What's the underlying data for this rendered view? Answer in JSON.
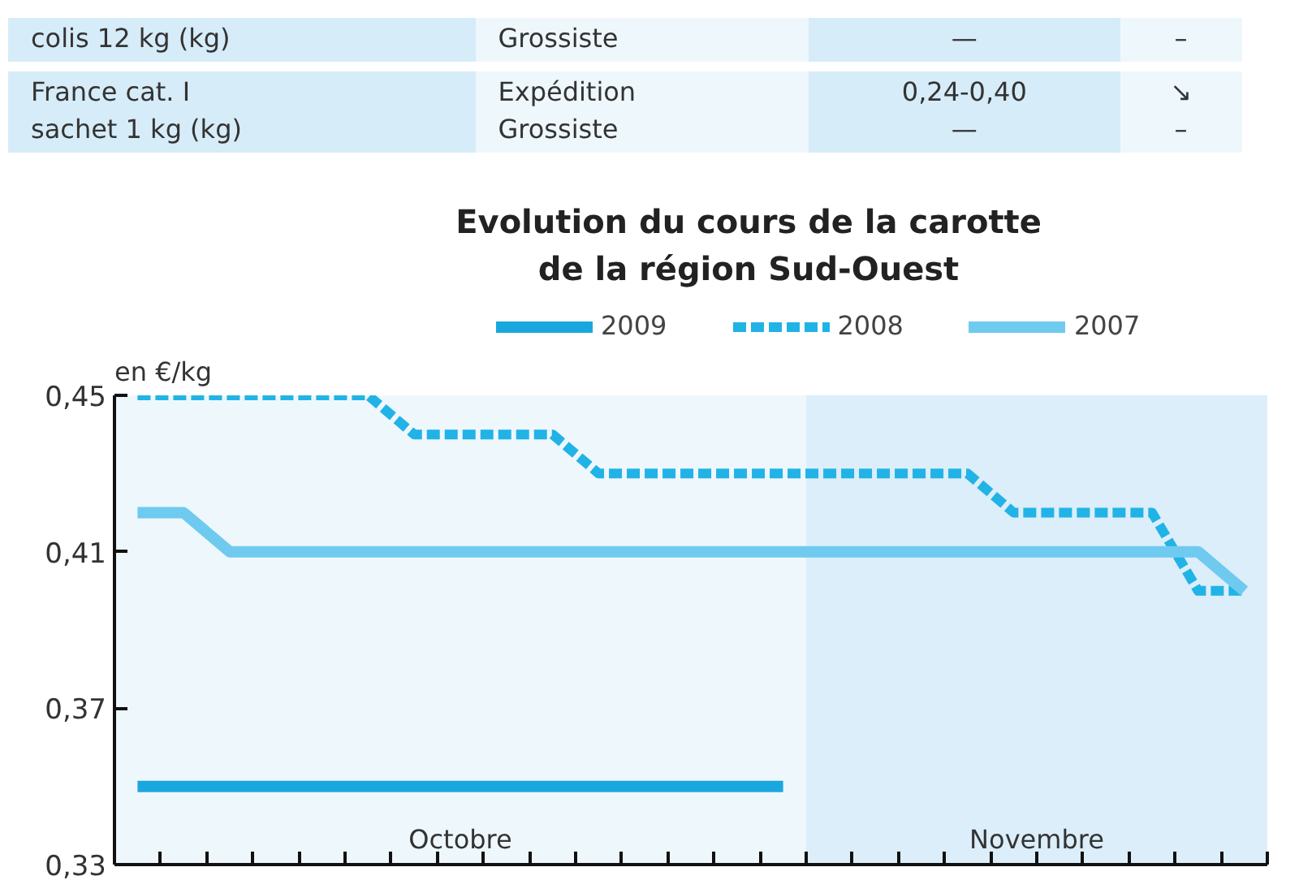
{
  "chart_data": {
    "type": "line",
    "title": "Evolution du cours de la carotte\nde la région Sud-Ouest",
    "ylabel": "en €/kg",
    "annotations": [
      "colis 12 kg (kg)",
      "Grossiste",
      "—",
      "–",
      "France cat. I\nsachet 1 kg (kg)",
      "Expédition\nGrossiste",
      "0,24-0,40\n—",
      "↘\n–",
      "Octobre",
      "Novembre"
    ],
    "categories": [
      null,
      null,
      null,
      null,
      null,
      null,
      null,
      null,
      null,
      null,
      null,
      null,
      null,
      null,
      null,
      null,
      null,
      null,
      null,
      null,
      null,
      null,
      null,
      null,
      null
    ],
    "series": [
      {
        "name": "2009",
        "color": "#1aa7de",
        "line_style": "solid",
        "values": [
          0.35,
          0.35,
          0.35,
          0.35,
          0.35,
          0.35,
          0.35,
          0.35,
          0.35,
          0.35,
          0.35,
          0.35,
          0.35,
          0.35,
          0.35,
          null,
          null,
          null,
          null,
          null,
          null,
          null,
          null,
          null,
          null
        ]
      },
      {
        "name": "2008",
        "color": "#22b3e6",
        "line_style": "dashed",
        "values": [
          0.45,
          0.45,
          0.45,
          0.45,
          0.45,
          0.45,
          0.44,
          0.44,
          0.44,
          0.44,
          0.43,
          0.43,
          0.43,
          0.43,
          0.43,
          0.43,
          0.43,
          0.43,
          0.43,
          0.42,
          0.42,
          0.42,
          0.42,
          0.4,
          0.4
        ]
      },
      {
        "name": "2007",
        "color": "#6fcaf0",
        "line_style": "solid",
        "values": [
          0.42,
          0.42,
          0.41,
          0.41,
          0.41,
          0.41,
          0.41,
          0.41,
          0.41,
          0.41,
          0.41,
          0.41,
          0.41,
          0.41,
          0.41,
          0.41,
          0.41,
          0.41,
          0.41,
          0.41,
          0.41,
          0.41,
          0.41,
          0.41,
          0.4
        ]
      }
    ],
    "ylim": [
      0.33,
      0.45
    ],
    "yticks": [
      {
        "value": 0.33,
        "label": "0,33"
      },
      {
        "value": 0.37,
        "label": "0,37"
      },
      {
        "value": 0.41,
        "label": "0,41"
      },
      {
        "value": 0.45,
        "label": "0,45"
      }
    ],
    "legend": "top",
    "tick_labels": "y"
  }
}
